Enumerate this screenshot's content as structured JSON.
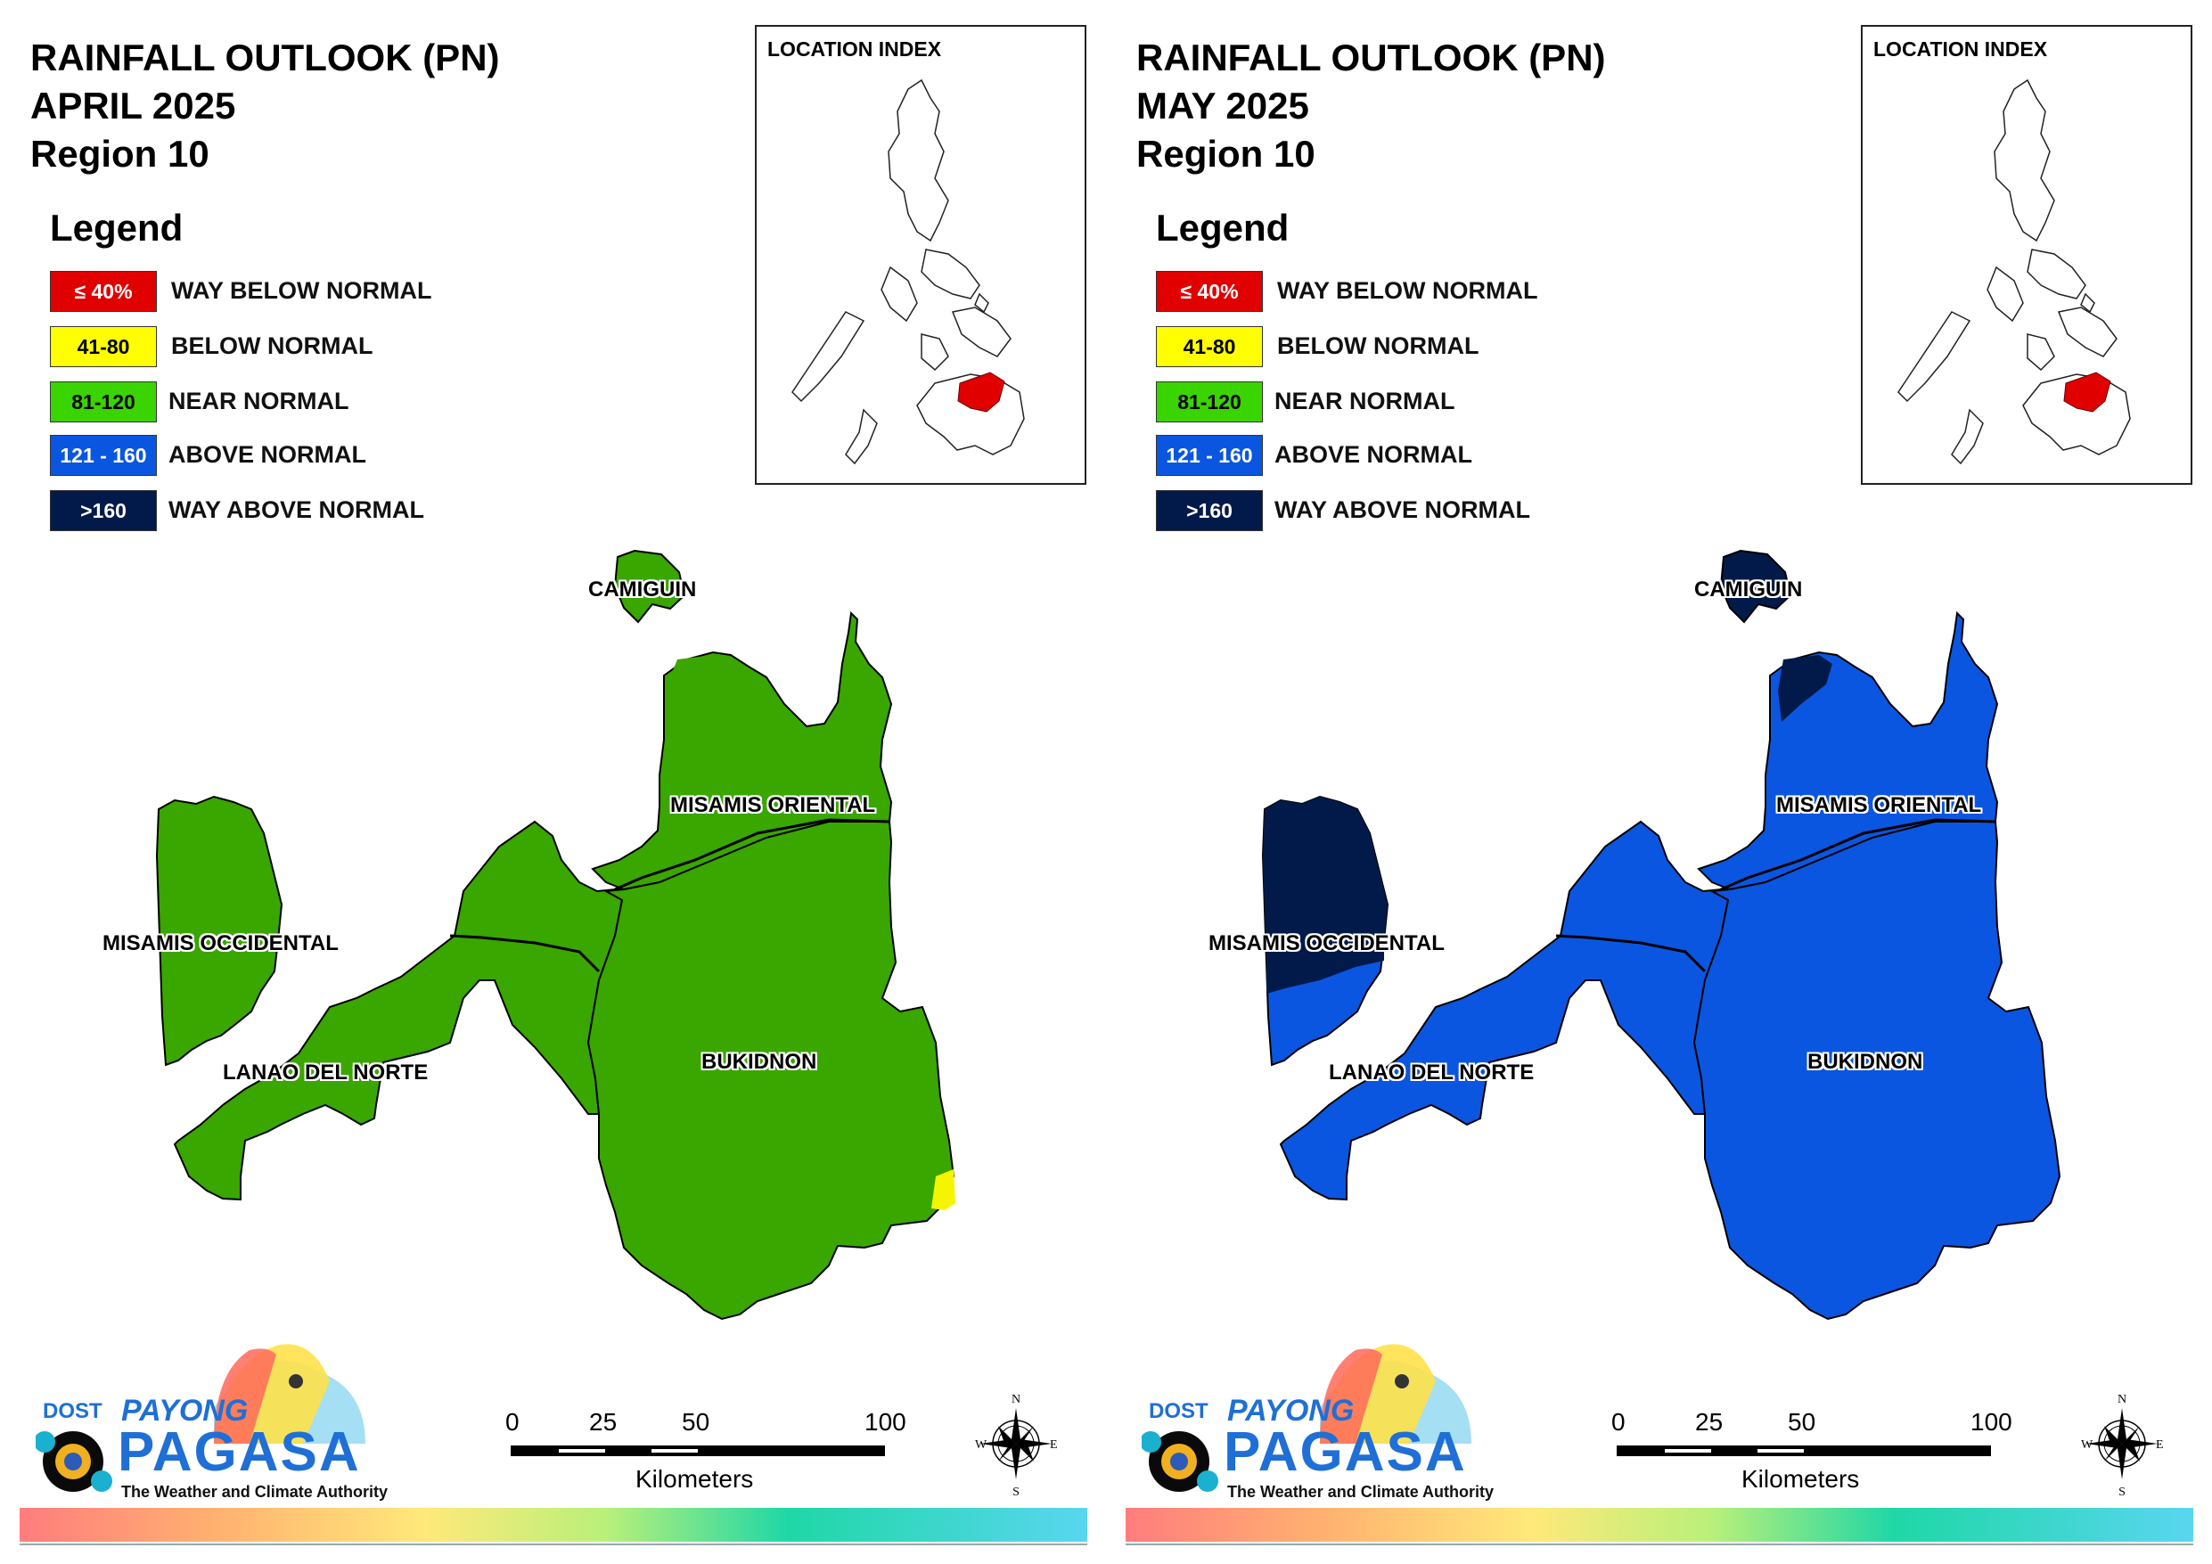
{
  "panels": [
    {
      "id": "april",
      "title_line1": "RAINFALL OUTLOOK (PN)",
      "title_line2": "APRIL 2025",
      "title_line3": "Region 10",
      "fills": {
        "misamis_occidental": "#3aa600",
        "misamis_occidental_north": "#3aa600",
        "misamis_occidental_south": "#3aa600",
        "lanao_del_norte": "#3aa600",
        "misamis_oriental": "#3aa600",
        "misamis_oriental_tip": "#3aa600",
        "bukidnon": "#3aa600",
        "camiguin": "#3aa600",
        "bukidnon_se_patch": "#f5f500"
      }
    },
    {
      "id": "may",
      "title_line1": "RAINFALL OUTLOOK (PN)",
      "title_line2": "MAY 2025",
      "title_line3": "Region 10",
      "fills": {
        "misamis_occidental": "#0b56e0",
        "misamis_occidental_north": "#021a4a",
        "misamis_occidental_south": "#0b56e0",
        "lanao_del_norte": "#0b56e0",
        "misamis_oriental": "#0b56e0",
        "misamis_oriental_tip": "#021a4a",
        "bukidnon": "#0b56e0",
        "camiguin": "#021a4a",
        "bukidnon_se_patch": "#0b56e0"
      }
    }
  ],
  "legend": {
    "title": "Legend",
    "items": [
      {
        "swatch_text": "≤ 40%",
        "label": "WAY BELOW NORMAL",
        "color": "#e00000",
        "text_color": "#ffffff"
      },
      {
        "swatch_text": "41-80",
        "label": "BELOW NORMAL",
        "color": "#ffff00",
        "text_color": "#000000"
      },
      {
        "swatch_text": "81-120",
        "label": "NEAR NORMAL",
        "color": "#3ad400",
        "text_color": "#000000"
      },
      {
        "swatch_text": "121 - 160",
        "label": "ABOVE NORMAL",
        "color": "#0b56e0",
        "text_color": "#ffffff"
      },
      {
        "swatch_text": ">160",
        "label": "WAY ABOVE NORMAL",
        "color": "#021a4a",
        "text_color": "#ffffff"
      }
    ]
  },
  "inset": {
    "title": "LOCATION INDEX",
    "highlight_color": "#e00000"
  },
  "map_labels": {
    "camiguin": "CAMIGUIN",
    "misamis_oriental": "MISAMIS ORIENTAL",
    "misamis_occidental": "MISAMIS OCCIDENTAL",
    "lanao_del_norte": "LANAO DEL NORTE",
    "bukidnon": "BUKIDNON"
  },
  "scale_bar": {
    "ticks": [
      "0",
      "25",
      "50",
      "100"
    ],
    "unit": "Kilometers"
  },
  "compass": {
    "n": "N",
    "s": "S",
    "e": "E",
    "w": "W"
  },
  "logo": {
    "dost": "DOST",
    "payong": "PAYONG",
    "pagasa": "PAGASA",
    "tagline": "The Weather and Climate Authority"
  }
}
